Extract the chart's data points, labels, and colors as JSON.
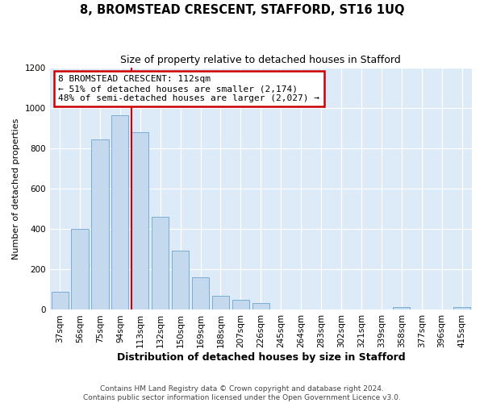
{
  "title": "8, BROMSTEAD CRESCENT, STAFFORD, ST16 1UQ",
  "subtitle": "Size of property relative to detached houses in Stafford",
  "xlabel": "Distribution of detached houses by size in Stafford",
  "ylabel": "Number of detached properties",
  "categories": [
    "37sqm",
    "56sqm",
    "75sqm",
    "94sqm",
    "113sqm",
    "132sqm",
    "150sqm",
    "169sqm",
    "188sqm",
    "207sqm",
    "226sqm",
    "245sqm",
    "264sqm",
    "283sqm",
    "302sqm",
    "321sqm",
    "339sqm",
    "358sqm",
    "377sqm",
    "396sqm",
    "415sqm"
  ],
  "values": [
    90,
    400,
    845,
    965,
    880,
    460,
    295,
    160,
    70,
    50,
    35,
    0,
    0,
    0,
    0,
    0,
    0,
    15,
    0,
    0,
    15
  ],
  "bar_color": "#c5d9ee",
  "bar_edge_color": "#7aadd4",
  "red_line_bar_index": 4,
  "annotation_line1": "8 BROMSTEAD CRESCENT: 112sqm",
  "annotation_line2": "← 51% of detached houses are smaller (2,174)",
  "annotation_line3": "48% of semi-detached houses are larger (2,027) →",
  "annotation_box_facecolor": "#ffffff",
  "annotation_box_edgecolor": "#cc0000",
  "ylim_max": 1200,
  "yticks": [
    0,
    200,
    400,
    600,
    800,
    1000,
    1200
  ],
  "fig_bg_color": "#ffffff",
  "plot_bg_color": "#ddeaf7",
  "footer_line1": "Contains HM Land Registry data © Crown copyright and database right 2024.",
  "footer_line2": "Contains public sector information licensed under the Open Government Licence v3.0.",
  "title_fontsize": 10.5,
  "subtitle_fontsize": 9,
  "xlabel_fontsize": 9,
  "ylabel_fontsize": 8,
  "tick_fontsize": 7.5,
  "footer_fontsize": 6.5,
  "ann_fontsize": 8
}
